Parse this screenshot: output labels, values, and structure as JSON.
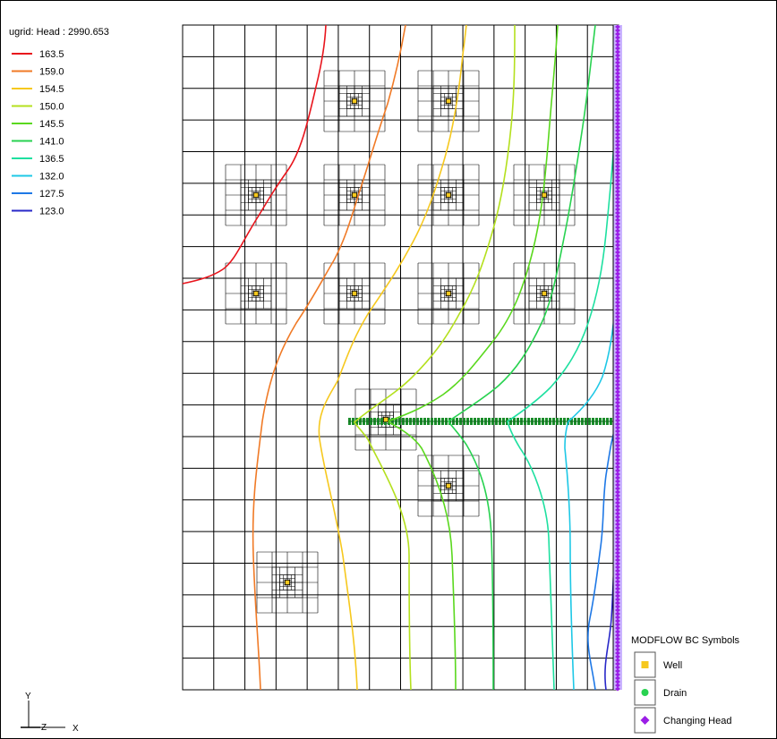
{
  "head_legend": {
    "title": "ugrid: Head : 2990.653",
    "entries": [
      {
        "label": "163.5",
        "color": "#e8141c"
      },
      {
        "label": "159.0",
        "color": "#f07a26"
      },
      {
        "label": "154.5",
        "color": "#f6c81e"
      },
      {
        "label": "150.0",
        "color": "#b4e01e"
      },
      {
        "label": "145.5",
        "color": "#5ad81e"
      },
      {
        "label": "141.0",
        "color": "#28d250"
      },
      {
        "label": "136.5",
        "color": "#1ee0a0"
      },
      {
        "label": "132.0",
        "color": "#1ec8e6"
      },
      {
        "label": "127.5",
        "color": "#1e78e6"
      },
      {
        "label": "123.0",
        "color": "#2828c8"
      }
    ]
  },
  "bc_legend": {
    "title": "MODFLOW BC Symbols",
    "items": [
      {
        "label": "Well",
        "symbol": "square",
        "color": "#f6c81e"
      },
      {
        "label": "Drain",
        "symbol": "circle",
        "color": "#28d250"
      },
      {
        "label": "Changing Head",
        "symbol": "diamond",
        "color": "#9b1ee6"
      }
    ]
  },
  "axes": {
    "y_label": "Y",
    "z_label": "Z",
    "x_label": "X"
  }
}
